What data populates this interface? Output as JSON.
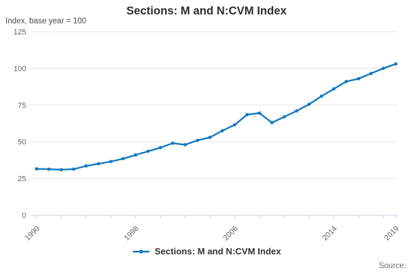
{
  "title": "Sections: M and N:CVM Index",
  "subtitle": "Index, base year = 100",
  "source_label": "Source:",
  "legend": {
    "label": "Sections: M and N:CVM Index"
  },
  "colors": {
    "series": "#1379bf",
    "grid": "#e6e6e6",
    "axis": "#c7d3e0",
    "tick_text": "#5f5f5f",
    "title_text": "#2e2e2e"
  },
  "chart_data": {
    "type": "line",
    "title": "Sections: M and N:CVM Index",
    "ylabel": "Index, base year = 100",
    "x": [
      1990,
      1991,
      1992,
      1993,
      1994,
      1995,
      1996,
      1997,
      1998,
      1999,
      2000,
      2001,
      2002,
      2003,
      2004,
      2005,
      2006,
      2007,
      2008,
      2009,
      2010,
      2011,
      2012,
      2013,
      2014,
      2015,
      2016,
      2017,
      2018,
      2019
    ],
    "series": [
      {
        "name": "Sections: M and N:CVM Index",
        "values": [
          31.5,
          31.3,
          31,
          31.3,
          33.5,
          35,
          36.5,
          38.5,
          41,
          43.5,
          46,
          49,
          48,
          51,
          53,
          57.5,
          61.5,
          68.5,
          69.5,
          63,
          67,
          71,
          75.5,
          81,
          86,
          91,
          93,
          96.5,
          100,
          103
        ]
      }
    ],
    "ylim": [
      0,
      125
    ],
    "yticks": [
      0,
      25,
      50,
      75,
      100,
      125
    ],
    "xticks": [
      1990,
      1992,
      1994,
      1996,
      1998,
      2000,
      2002,
      2004,
      2006,
      2008,
      2010,
      2012,
      2014,
      2016,
      2018,
      2019
    ],
    "xtick_labels": [
      1990,
      1998,
      2006,
      2014,
      2019
    ],
    "grid": true,
    "legend_position": "bottom"
  }
}
